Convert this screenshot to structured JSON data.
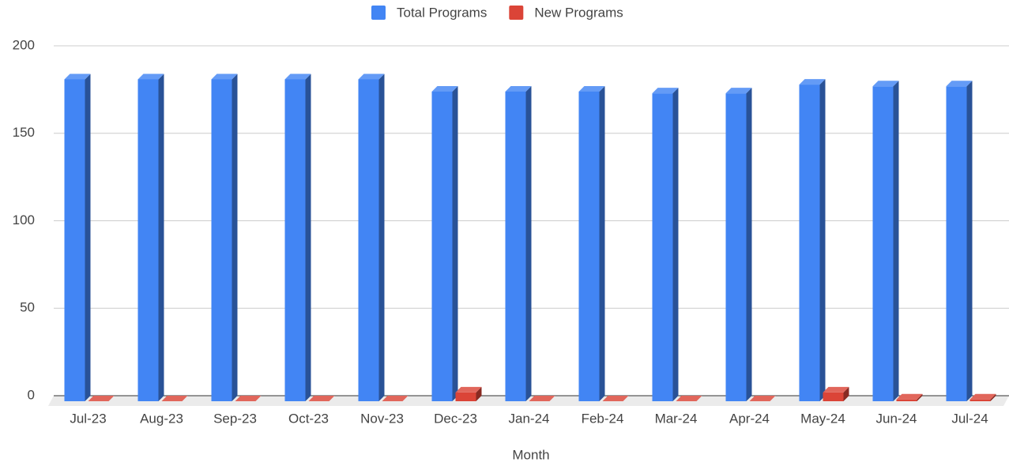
{
  "chart_data": {
    "type": "bar3d",
    "x_label": "Month",
    "categories": [
      "Jul-23",
      "Aug-23",
      "Sep-23",
      "Oct-23",
      "Nov-23",
      "Dec-23",
      "Jan-24",
      "Feb-24",
      "Mar-24",
      "Apr-24",
      "May-24",
      "Jun-24",
      "Jul-24"
    ],
    "series": [
      {
        "name": "Total Programs",
        "color": "#4285f4",
        "values": [
          184,
          184,
          184,
          184,
          184,
          177,
          177,
          177,
          176,
          176,
          181,
          180,
          180
        ]
      },
      {
        "name": "New Programs",
        "color": "#db4437",
        "values": [
          0,
          0,
          0,
          0,
          0,
          5,
          0,
          0,
          0,
          0,
          5,
          1,
          1
        ]
      }
    ],
    "ylim": [
      0,
      200
    ],
    "yticks": [
      0,
      50,
      100,
      150,
      200
    ],
    "grid": true,
    "legend": "top"
  }
}
